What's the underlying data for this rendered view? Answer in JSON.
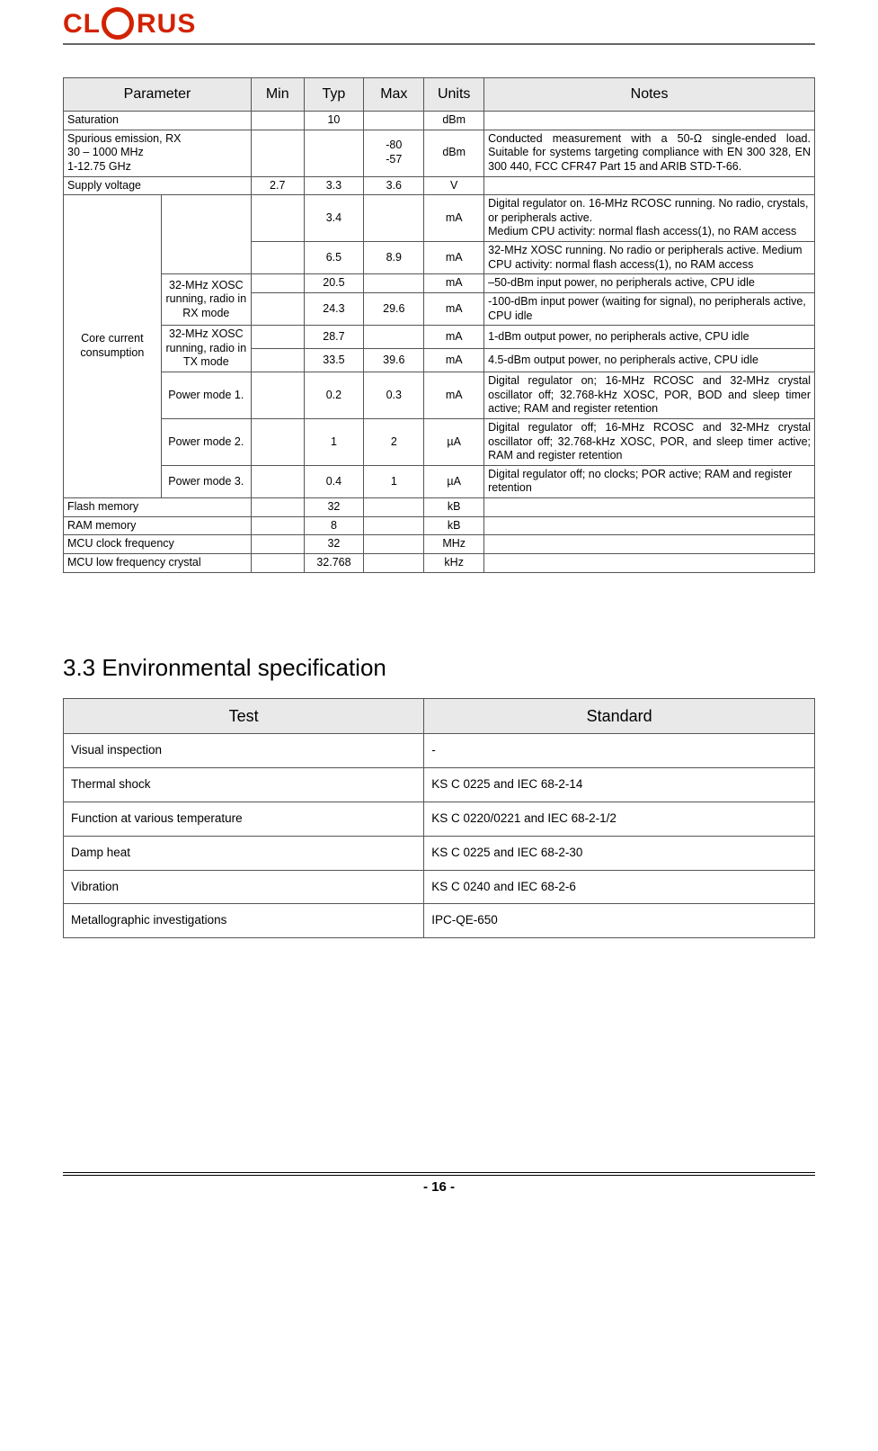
{
  "logo": {
    "letters": [
      "C",
      "L",
      "R",
      "U",
      "S"
    ]
  },
  "param_table": {
    "headers": [
      "Parameter",
      "Min",
      "Typ",
      "Max",
      "Units",
      "Notes"
    ],
    "col_widths_pct": [
      25,
      7,
      8,
      8,
      8,
      44
    ],
    "rows": [
      {
        "cells": [
          "Saturation",
          "",
          "10",
          "",
          "dBm",
          ""
        ],
        "align": [
          "l",
          "c",
          "c",
          "c",
          "c",
          "l"
        ]
      },
      {
        "cells": [
          "Spurious emission, RX\n30 – 1000 MHz\n1-12.75 GHz",
          "",
          "",
          "-80\n-57",
          "dBm",
          "Conducted measurement with a 50-Ω single-ended load. Suitable for systems targeting compliance with EN 300 328, EN 300 440, FCC CFR47 Part 15 and ARIB STD-T-66."
        ],
        "align": [
          "l",
          "c",
          "c",
          "c",
          "c",
          "j"
        ]
      },
      {
        "cells": [
          "Supply voltage",
          "2.7",
          "3.3",
          "3.6",
          "V",
          ""
        ],
        "align": [
          "l",
          "c",
          "c",
          "c",
          "c",
          "l"
        ]
      }
    ],
    "core_block": {
      "label": "Core current consumption",
      "sub": [
        {
          "sub_label": "",
          "rows": [
            {
              "cells": [
                "",
                "3.4",
                "",
                "mA",
                "Digital regulator on. 16-MHz RCOSC running. No radio, crystals, or peripherals active.\nMedium CPU activity: normal flash access(1), no RAM access"
              ],
              "align": [
                "c",
                "c",
                "c",
                "c",
                "l"
              ]
            },
            {
              "cells": [
                "",
                "6.5",
                "8.9",
                "mA",
                "32-MHz XOSC running. No radio or peripherals active. Medium CPU activity: normal flash access(1), no RAM access"
              ],
              "align": [
                "c",
                "c",
                "c",
                "c",
                "l"
              ]
            }
          ]
        },
        {
          "sub_label": "32-MHz XOSC running, radio in RX mode",
          "rows": [
            {
              "cells": [
                "",
                "20.5",
                "",
                "mA",
                "–50-dBm input power, no peripherals active, CPU idle"
              ],
              "align": [
                "c",
                "c",
                "c",
                "c",
                "l"
              ]
            },
            {
              "cells": [
                "",
                "24.3",
                "29.6",
                "mA",
                "-100-dBm input power (waiting for signal), no peripherals active, CPU idle"
              ],
              "align": [
                "c",
                "c",
                "c",
                "c",
                "l"
              ]
            }
          ]
        },
        {
          "sub_label": "32-MHz XOSC running, radio in TX mode",
          "rows": [
            {
              "cells": [
                "",
                "28.7",
                "",
                "mA",
                "1-dBm output power, no peripherals active, CPU idle"
              ],
              "align": [
                "c",
                "c",
                "c",
                "c",
                "l"
              ]
            },
            {
              "cells": [
                "",
                "33.5",
                "39.6",
                "mA",
                "4.5-dBm output power, no peripherals active, CPU idle"
              ],
              "align": [
                "c",
                "c",
                "c",
                "c",
                "l"
              ]
            }
          ]
        },
        {
          "sub_label": "Power mode 1.",
          "rows": [
            {
              "cells": [
                "",
                "0.2",
                "0.3",
                "mA",
                "Digital regulator on; 16-MHz RCOSC and 32-MHz crystal oscillator off; 32.768-kHz XOSC, POR, BOD and sleep timer active; RAM and register retention"
              ],
              "align": [
                "c",
                "c",
                "c",
                "c",
                "j"
              ]
            }
          ]
        },
        {
          "sub_label": "Power mode 2.",
          "rows": [
            {
              "cells": [
                "",
                "1",
                "2",
                "µA",
                "Digital regulator off; 16-MHz RCOSC and 32-MHz crystal oscillator off; 32.768-kHz XOSC, POR, and sleep timer active; RAM and register retention"
              ],
              "align": [
                "c",
                "c",
                "c",
                "c",
                "j"
              ]
            }
          ]
        },
        {
          "sub_label": "Power mode 3.",
          "rows": [
            {
              "cells": [
                "",
                "0.4",
                "1",
                "µA",
                "Digital regulator off; no clocks; POR active; RAM and register retention"
              ],
              "align": [
                "c",
                "c",
                "c",
                "c",
                "l"
              ]
            }
          ]
        }
      ]
    },
    "tail_rows": [
      {
        "cells": [
          "Flash memory",
          "",
          "32",
          "",
          "kB",
          ""
        ],
        "align": [
          "l",
          "c",
          "c",
          "c",
          "c",
          "l"
        ]
      },
      {
        "cells": [
          "RAM memory",
          "",
          "8",
          "",
          "kB",
          ""
        ],
        "align": [
          "l",
          "c",
          "c",
          "c",
          "c",
          "l"
        ]
      },
      {
        "cells": [
          "MCU clock frequency",
          "",
          "32",
          "",
          "MHz",
          ""
        ],
        "align": [
          "l",
          "c",
          "c",
          "c",
          "c",
          "l"
        ]
      },
      {
        "cells": [
          "MCU low frequency crystal",
          "",
          "32.768",
          "",
          "kHz",
          ""
        ],
        "align": [
          "l",
          "c",
          "c",
          "c",
          "c",
          "l"
        ]
      }
    ]
  },
  "section_title": "3.3 Environmental specification",
  "env_table": {
    "headers": [
      "Test",
      "Standard"
    ],
    "col_widths_pct": [
      48,
      52
    ],
    "rows": [
      [
        "Visual inspection",
        "-"
      ],
      [
        "Thermal shock",
        "KS C 0225 and IEC 68-2-14"
      ],
      [
        "Function at various temperature",
        "KS C 0220/0221 and IEC 68-2-1/2"
      ],
      [
        "Damp heat",
        "KS C 0225 and IEC 68-2-30"
      ],
      [
        "Vibration",
        "KS C 0240 and IEC 68-2-6"
      ],
      [
        "Metallographic investigations",
        "IPC-QE-650"
      ]
    ]
  },
  "footer": "- 16 -"
}
